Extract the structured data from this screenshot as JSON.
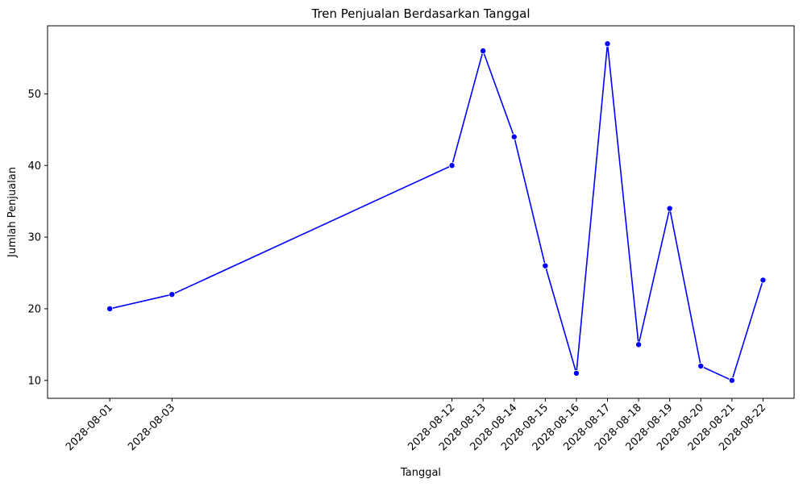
{
  "chart_data": {
    "type": "line",
    "title": "Tren Penjualan Berdasarkan Tanggal",
    "xlabel": "Tanggal",
    "ylabel": "Jumlah Penjualan",
    "x": [
      "2028-08-01",
      "2028-08-03",
      "2028-08-12",
      "2028-08-13",
      "2028-08-14",
      "2028-08-15",
      "2028-08-16",
      "2028-08-17",
      "2028-08-18",
      "2028-08-19",
      "2028-08-20",
      "2028-08-21",
      "2028-08-22"
    ],
    "xlim": [
      "2028-07-30",
      "2028-08-23"
    ],
    "ylim": [
      7.5,
      59.5
    ],
    "yticks": [
      10,
      20,
      30,
      40,
      50
    ],
    "series": [
      {
        "values": [
          20,
          22,
          40,
          56,
          44,
          26,
          11,
          57,
          15,
          34,
          12,
          10,
          24
        ]
      }
    ],
    "grid": false,
    "marker": "circle",
    "line_color": "#0000ff",
    "marker_color": "#0000ff"
  }
}
